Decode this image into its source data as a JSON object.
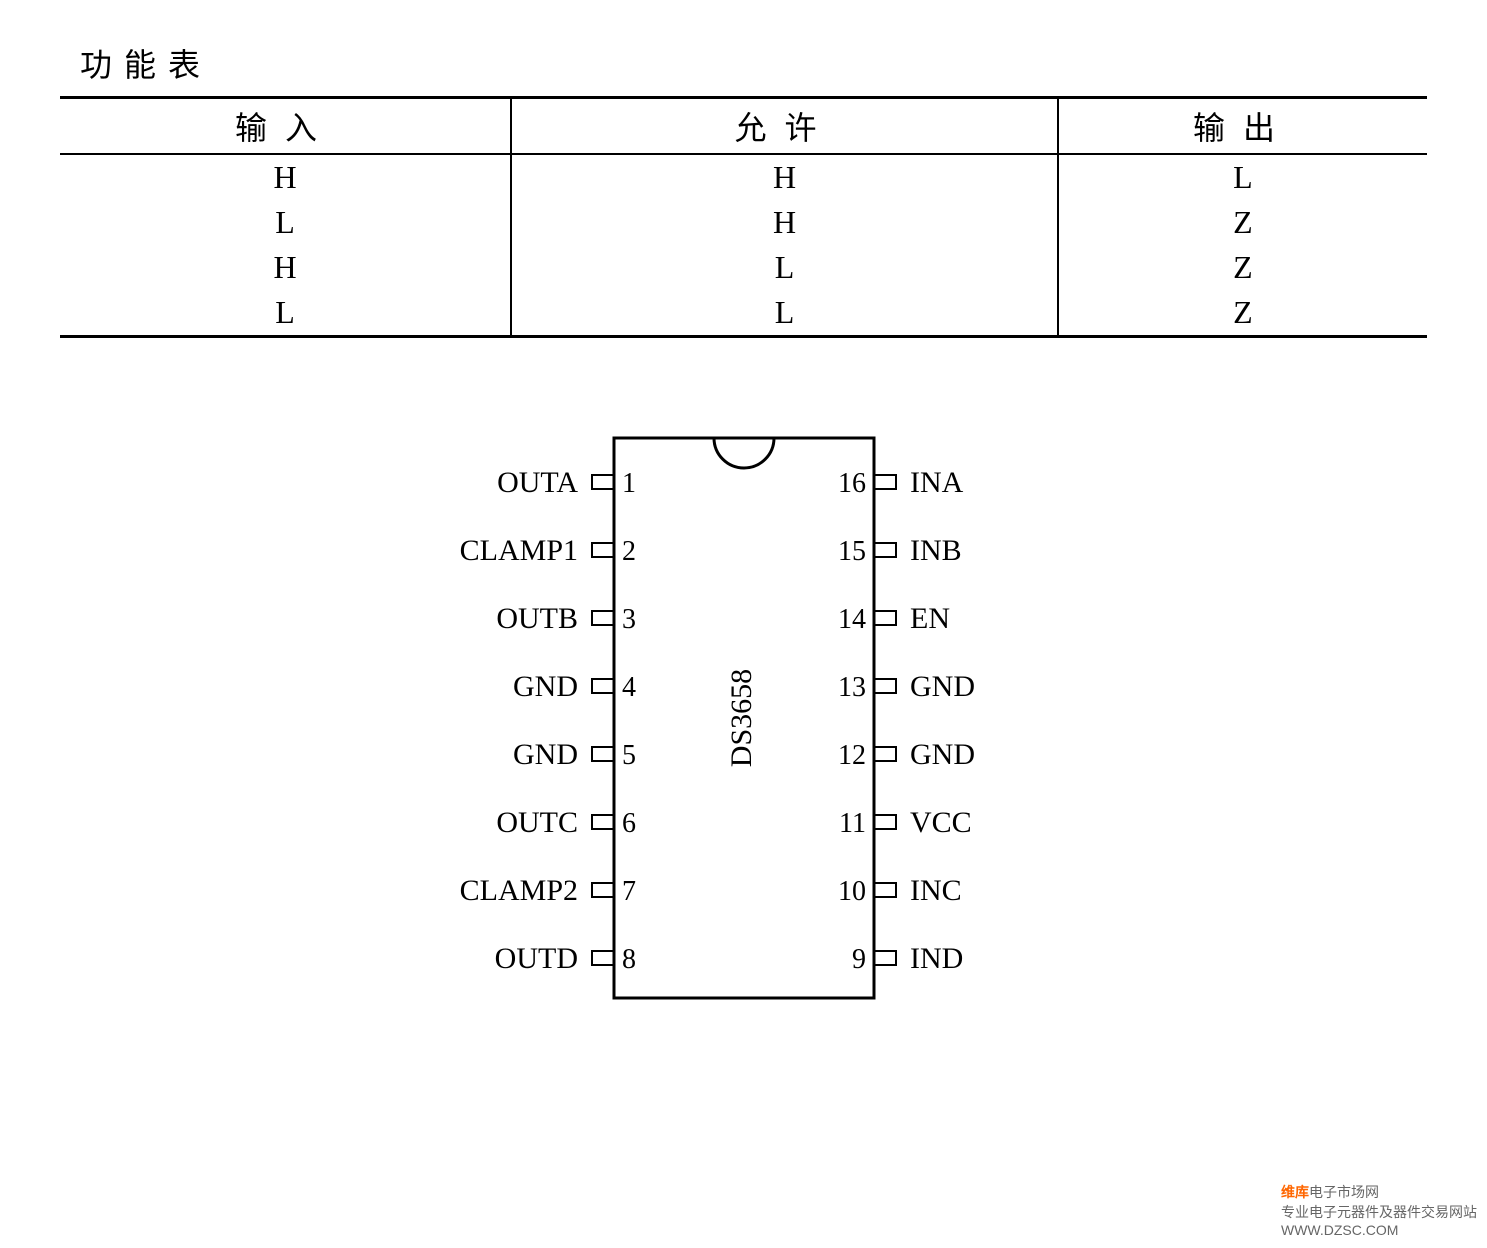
{
  "title": "功能表",
  "table": {
    "columns": [
      "输入",
      "允许",
      "输出"
    ],
    "rows": [
      [
        "H",
        "H",
        "L"
      ],
      [
        "L",
        "H",
        "Z"
      ],
      [
        "H",
        "L",
        "Z"
      ],
      [
        "L",
        "L",
        "Z"
      ]
    ],
    "col_widths_pct": [
      33,
      40,
      27
    ],
    "border_color": "#000000",
    "border_top_width": 3,
    "border_mid_width": 2,
    "border_bottom_width": 3,
    "font_size": 32,
    "header_letter_spacing": 18
  },
  "chip": {
    "name": "DS3658",
    "pin_count": 16,
    "body_width": 260,
    "body_height": 560,
    "pin_spacing": 68,
    "pin_box_w": 22,
    "pin_box_h": 14,
    "stroke": "#000000",
    "stroke_width": 3,
    "notch_radius": 30,
    "left_pins": [
      {
        "num": 1,
        "label": "OUTA"
      },
      {
        "num": 2,
        "label": "CLAMP1"
      },
      {
        "num": 3,
        "label": "OUTB"
      },
      {
        "num": 4,
        "label": "GND"
      },
      {
        "num": 5,
        "label": "GND"
      },
      {
        "num": 6,
        "label": "OUTC"
      },
      {
        "num": 7,
        "label": "CLAMP2"
      },
      {
        "num": 8,
        "label": "OUTD"
      }
    ],
    "right_pins": [
      {
        "num": 16,
        "label": "INA"
      },
      {
        "num": 15,
        "label": "INB"
      },
      {
        "num": 14,
        "label": "EN"
      },
      {
        "num": 13,
        "label": "GND"
      },
      {
        "num": 12,
        "label": "GND"
      },
      {
        "num": 11,
        "label": "VCC"
      },
      {
        "num": 10,
        "label": "INC"
      },
      {
        "num": 9,
        "label": "IND"
      }
    ]
  },
  "watermark": {
    "brand": "维库",
    "text1": "电子市场网",
    "text2": "专业电子元器件及器件交易网站",
    "url": "WWW.DZSC.COM"
  },
  "colors": {
    "background": "#ffffff",
    "text": "#000000",
    "watermark_gray": "#666666",
    "watermark_orange": "#ff6600"
  }
}
